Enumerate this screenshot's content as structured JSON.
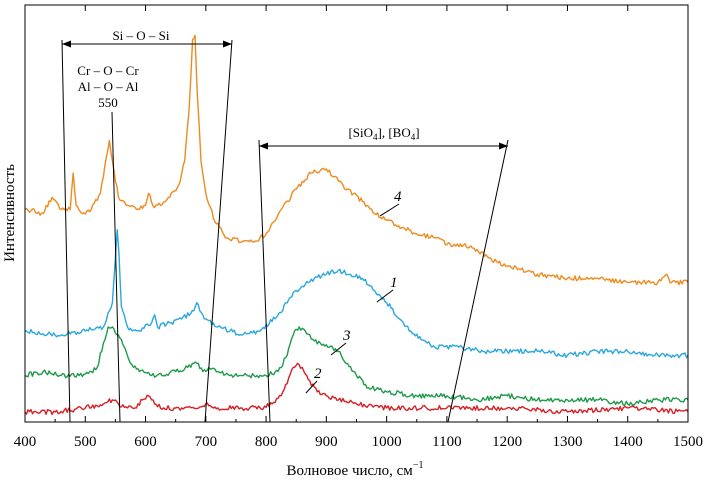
{
  "chart_data": {
    "type": "line",
    "xlabel": "Волновое число, см",
    "xlabel_sup": "−1",
    "ylabel": "Интенсивность",
    "xlim": [
      400,
      1500
    ],
    "xticks": [
      400,
      500,
      600,
      700,
      800,
      900,
      1000,
      1100,
      1200,
      1300,
      1400,
      1500
    ],
    "y_tick_labels": false,
    "grid": false,
    "annotations": {
      "si_o_si": "Si – O – Si",
      "cr_o_cr": "Cr – O – Cr",
      "al_o_al": "Al – O – Al",
      "peak_550": "550",
      "sio4_prefix": "[SiO",
      "sio4_sub": "4",
      "sio4_mid": "], [BO",
      "bo4_sub": "4",
      "bo4_suffix": "]"
    },
    "series": [
      {
        "name": "4",
        "color": "#ef8a1f",
        "x": [
          400,
          430,
          445,
          460,
          475,
          480,
          485,
          495,
          510,
          525,
          535,
          540,
          545,
          555,
          570,
          585,
          600,
          605,
          612,
          625,
          640,
          655,
          665,
          672,
          678,
          682,
          686,
          692,
          700,
          715,
          735,
          760,
          780,
          800,
          825,
          850,
          875,
          900,
          920,
          935,
          960,
          990,
          1020,
          1050,
          1080,
          1110,
          1140,
          1170,
          1200,
          1250,
          1300,
          1350,
          1400,
          1450,
          1465,
          1470,
          1480,
          1500
        ],
        "y": [
          0.5,
          0.49,
          0.53,
          0.5,
          0.5,
          0.59,
          0.51,
          0.49,
          0.5,
          0.54,
          0.63,
          0.67,
          0.62,
          0.53,
          0.51,
          0.5,
          0.51,
          0.54,
          0.51,
          0.51,
          0.53,
          0.56,
          0.62,
          0.74,
          0.92,
          0.93,
          0.78,
          0.62,
          0.54,
          0.47,
          0.43,
          0.42,
          0.42,
          0.44,
          0.5,
          0.55,
          0.59,
          0.6,
          0.57,
          0.55,
          0.52,
          0.48,
          0.46,
          0.44,
          0.43,
          0.41,
          0.41,
          0.38,
          0.36,
          0.34,
          0.33,
          0.33,
          0.32,
          0.32,
          0.34,
          0.32,
          0.32,
          0.32
        ]
      },
      {
        "name": "1",
        "color": "#2aa7dd",
        "x": [
          400,
          450,
          500,
          530,
          545,
          550,
          553,
          556,
          560,
          570,
          590,
          610,
          615,
          620,
          640,
          660,
          680,
          685,
          690,
          700,
          720,
          740,
          760,
          790,
          820,
          850,
          880,
          900,
          920,
          940,
          960,
          1000,
          1040,
          1080,
          1120,
          1160,
          1200,
          1250,
          1300,
          1350,
          1400,
          1450,
          1500
        ],
        "y": [
          0.2,
          0.19,
          0.2,
          0.21,
          0.27,
          0.38,
          0.45,
          0.39,
          0.26,
          0.21,
          0.2,
          0.22,
          0.24,
          0.21,
          0.22,
          0.23,
          0.25,
          0.27,
          0.25,
          0.23,
          0.21,
          0.2,
          0.19,
          0.2,
          0.24,
          0.3,
          0.33,
          0.34,
          0.35,
          0.34,
          0.33,
          0.27,
          0.2,
          0.16,
          0.16,
          0.15,
          0.15,
          0.15,
          0.14,
          0.15,
          0.15,
          0.14,
          0.14
        ]
      },
      {
        "name": "3",
        "color": "#1f9a4b",
        "x": [
          400,
          430,
          460,
          490,
          510,
          520,
          530,
          538,
          545,
          555,
          565,
          575,
          590,
          610,
          630,
          650,
          670,
          685,
          695,
          705,
          720,
          740,
          760,
          780,
          800,
          820,
          835,
          845,
          855,
          865,
          875,
          890,
          905,
          920,
          935,
          950,
          970,
          1000,
          1050,
          1100,
          1150,
          1200,
          1250,
          1300,
          1350,
          1400,
          1450,
          1500
        ],
        "y": [
          0.09,
          0.1,
          0.09,
          0.09,
          0.1,
          0.11,
          0.17,
          0.21,
          0.21,
          0.19,
          0.16,
          0.12,
          0.1,
          0.09,
          0.09,
          0.1,
          0.11,
          0.12,
          0.1,
          0.11,
          0.1,
          0.09,
          0.09,
          0.09,
          0.09,
          0.1,
          0.14,
          0.19,
          0.21,
          0.2,
          0.18,
          0.17,
          0.16,
          0.15,
          0.12,
          0.09,
          0.06,
          0.05,
          0.04,
          0.04,
          0.03,
          0.04,
          0.03,
          0.03,
          0.03,
          0.02,
          0.03,
          0.03
        ]
      },
      {
        "name": "2",
        "color": "#d81f26",
        "x": [
          400,
          450,
          500,
          530,
          545,
          555,
          570,
          585,
          595,
          605,
          615,
          630,
          660,
          680,
          700,
          720,
          760,
          790,
          810,
          825,
          835,
          845,
          852,
          860,
          870,
          885,
          900,
          920,
          950,
          1000,
          1100,
          1200,
          1300,
          1400,
          1500
        ],
        "y": [
          0.0,
          0.0,
          0.01,
          0.02,
          0.03,
          0.02,
          0.01,
          0.01,
          0.03,
          0.04,
          0.02,
          0.01,
          0.01,
          0.01,
          0.02,
          0.01,
          0.01,
          0.01,
          0.02,
          0.04,
          0.07,
          0.11,
          0.12,
          0.11,
          0.08,
          0.05,
          0.04,
          0.03,
          0.02,
          0.01,
          0.01,
          0.01,
          0.0,
          0.01,
          0.0
        ]
      }
    ]
  }
}
